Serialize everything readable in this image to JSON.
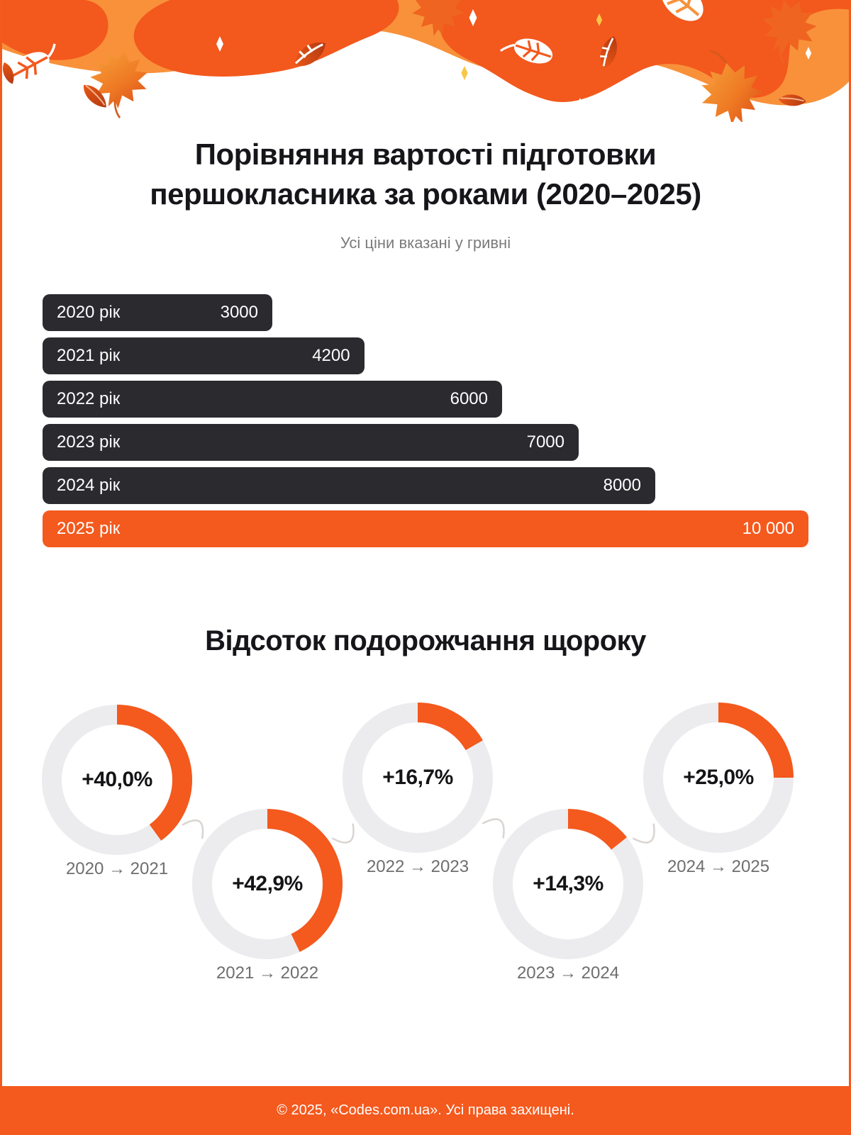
{
  "page": {
    "title": "Порівняння вартості підготовки першокласника за роками (2020–2025)",
    "subtitle": "Усі ціни вказані у гривні",
    "section2_title": "Відсоток подорожчання щороку",
    "footer": "© 2025, «Codes.com.ua». Усі права захищені."
  },
  "colors": {
    "accent": "#F4591D",
    "dark_bar": "#2A2A2F",
    "ring_gray": "#ECECEE",
    "light_wave": "#F8913A",
    "dark_wave": "#F3581D",
    "label_gray": "#6E6E6E"
  },
  "chart_data": [
    {
      "type": "bar",
      "orientation": "horizontal",
      "title": "Порівняння вартості підготовки першокласника за роками (2020–2025)",
      "subtitle": "Усі ціни вказані у гривні",
      "unit": "грн",
      "categories": [
        "2020 рік",
        "2021 рік",
        "2022 рік",
        "2023 рік",
        "2024 рік",
        "2025 рік"
      ],
      "values": [
        3000,
        4200,
        6000,
        7000,
        8000,
        10000
      ],
      "value_labels": [
        "3000",
        "4200",
        "6000",
        "7000",
        "8000",
        "10 000"
      ],
      "xlim": [
        0,
        10000
      ],
      "highlight_index": 5,
      "grid": false,
      "legend": false
    },
    {
      "type": "pie",
      "variant": "donut-gauges",
      "title": "Відсоток подорожчання щороку",
      "items": [
        {
          "label": "2020 → 2021",
          "value": 40.0,
          "display": "+40,0%"
        },
        {
          "label": "2021 → 2022",
          "value": 42.9,
          "display": "+42,9%"
        },
        {
          "label": "2022 → 2023",
          "value": 16.7,
          "display": "+16,7%"
        },
        {
          "label": "2023 → 2024",
          "value": 14.3,
          "display": "+14,3%"
        },
        {
          "label": "2024 → 2025",
          "value": 25.0,
          "display": "+25,0%"
        }
      ]
    }
  ]
}
